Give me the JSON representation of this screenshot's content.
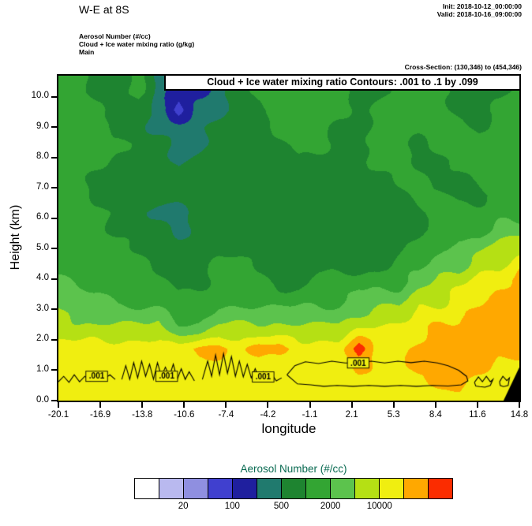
{
  "header": {
    "title": "W-E at 8S",
    "init": "Init: 2018-10-12_00:00:00",
    "valid": "Valid: 2018-10-16_09:00:00",
    "field_lines": [
      "Aerosol Number  (#/cc)",
      "Cloud + Ice water mixing ratio  (g/kg)",
      "Main"
    ],
    "cross_section": "Cross-Section: (130,346) to (454,346)"
  },
  "chart_data": {
    "type": "heatmap",
    "title": "Cloud + Ice water mixing ratio Contours: .001 to .1 by .099",
    "xlabel": "longitude",
    "ylabel": "Height (km)",
    "x_range": [
      -20.1,
      14.8
    ],
    "y_range": [
      0,
      10.7
    ],
    "x_ticks": [
      "-20.1",
      "-16.9",
      "-13.8",
      "-10.6",
      "-7.4",
      "-4.2",
      "-1.1",
      "2.1",
      "5.3",
      "8.4",
      "11.6",
      "14.8"
    ],
    "y_ticks": [
      "0.0",
      "1.0",
      "2.0",
      "3.0",
      "4.0",
      "5.0",
      "6.0",
      "7.0",
      "8.0",
      "9.0",
      "10.0"
    ],
    "palette": [
      "#ffffff",
      "#b9b9ef",
      "#8f8fe0",
      "#4040cf",
      "#1f1f9e",
      "#207a6e",
      "#1e8430",
      "#33a533",
      "#5cc34d",
      "#b5e014",
      "#f0ee10",
      "#ffa800",
      "#fb2c00"
    ],
    "legend": {
      "title": "Aerosol Number  (#/cc)",
      "title_color": "#0a6b52",
      "n_swatches": 13,
      "labels": [
        {
          "text": "20",
          "boundary": 2
        },
        {
          "text": "100",
          "boundary": 4
        },
        {
          "text": "500",
          "boundary": 6
        },
        {
          "text": "2000",
          "boundary": 8
        },
        {
          "text": "10000",
          "boundary": 10
        }
      ]
    },
    "field": {
      "cols": 24,
      "rows": 20,
      "values": [
        [
          7,
          7,
          6,
          6,
          7,
          5,
          4,
          3,
          5,
          6,
          7,
          7,
          6,
          7,
          7,
          6,
          6,
          7,
          7,
          6,
          6,
          7,
          6,
          6
        ],
        [
          7,
          7,
          6,
          6,
          7,
          5,
          4,
          4,
          5,
          6,
          7,
          7,
          7,
          7,
          7,
          6,
          6,
          7,
          7,
          7,
          6,
          6,
          6,
          7
        ],
        [
          7,
          7,
          7,
          6,
          6,
          5,
          3,
          5,
          5,
          6,
          6,
          7,
          7,
          7,
          7,
          6,
          7,
          7,
          7,
          7,
          6,
          6,
          7,
          7
        ],
        [
          7,
          7,
          7,
          6,
          6,
          5,
          5,
          5,
          6,
          6,
          6,
          7,
          7,
          7,
          6,
          6,
          7,
          7,
          7,
          7,
          7,
          6,
          7,
          7
        ],
        [
          7,
          7,
          7,
          7,
          6,
          6,
          5,
          5,
          6,
          6,
          6,
          6,
          7,
          7,
          6,
          6,
          7,
          7,
          6,
          7,
          7,
          7,
          7,
          7
        ],
        [
          7,
          7,
          7,
          6,
          6,
          6,
          5,
          6,
          6,
          6,
          6,
          6,
          6,
          6,
          6,
          6,
          7,
          7,
          6,
          6,
          7,
          7,
          7,
          7
        ],
        [
          7,
          7,
          6,
          6,
          6,
          6,
          6,
          6,
          6,
          6,
          6,
          6,
          6,
          6,
          6,
          6,
          6,
          7,
          7,
          6,
          6,
          7,
          7,
          7
        ],
        [
          7,
          7,
          6,
          6,
          6,
          6,
          6,
          6,
          6,
          6,
          6,
          6,
          6,
          6,
          6,
          6,
          6,
          6,
          7,
          7,
          6,
          6,
          7,
          7
        ],
        [
          7,
          7,
          7,
          6,
          6,
          5,
          5,
          6,
          6,
          6,
          6,
          6,
          6,
          6,
          6,
          6,
          6,
          6,
          6,
          7,
          7,
          7,
          7,
          7
        ],
        [
          7,
          7,
          7,
          6,
          6,
          6,
          5,
          6,
          6,
          6,
          6,
          6,
          6,
          6,
          6,
          6,
          6,
          6,
          6,
          7,
          7,
          7,
          8,
          8
        ],
        [
          7,
          7,
          7,
          7,
          6,
          6,
          6,
          6,
          6,
          6,
          6,
          6,
          6,
          6,
          6,
          6,
          6,
          6,
          7,
          7,
          8,
          8,
          9,
          9
        ],
        [
          7,
          7,
          7,
          7,
          7,
          6,
          6,
          6,
          7,
          7,
          6,
          6,
          6,
          6,
          6,
          6,
          6,
          7,
          7,
          8,
          8,
          9,
          9,
          10
        ],
        [
          8,
          7,
          7,
          7,
          7,
          7,
          6,
          6,
          7,
          7,
          7,
          6,
          6,
          7,
          7,
          7,
          7,
          7,
          8,
          9,
          9,
          10,
          10,
          11
        ],
        [
          8,
          8,
          8,
          7,
          7,
          7,
          7,
          7,
          7,
          7,
          7,
          7,
          7,
          7,
          7,
          8,
          8,
          8,
          9,
          9,
          10,
          10,
          11,
          11
        ],
        [
          9,
          8,
          8,
          8,
          8,
          8,
          7,
          7,
          8,
          8,
          8,
          8,
          8,
          8,
          8,
          8,
          9,
          9,
          10,
          10,
          10,
          11,
          11,
          11
        ],
        [
          9,
          9,
          9,
          9,
          9,
          9,
          8,
          8,
          9,
          9,
          9,
          9,
          9,
          9,
          9,
          10,
          10,
          10,
          10,
          11,
          11,
          11,
          11,
          11
        ],
        [
          10,
          10,
          10,
          10,
          10,
          10,
          10,
          11,
          11,
          10,
          11,
          11,
          10,
          10,
          10,
          12,
          10,
          10,
          11,
          11,
          11,
          11,
          11,
          11
        ],
        [
          10,
          10,
          10,
          10,
          10,
          10,
          10,
          10,
          10,
          10,
          10,
          10,
          10,
          10,
          10,
          11,
          10,
          10,
          11,
          11,
          11,
          11,
          10,
          10
        ],
        [
          10,
          10,
          10,
          10,
          10,
          10,
          10,
          10,
          10,
          10,
          10,
          10,
          10,
          10,
          10,
          10,
          10,
          10,
          10,
          11,
          11,
          10,
          10,
          10
        ],
        [
          10,
          10,
          10,
          10,
          10,
          10,
          10,
          10,
          10,
          10,
          10,
          10,
          10,
          10,
          10,
          10,
          10,
          10,
          10,
          10,
          10,
          10,
          10,
          10
        ]
      ]
    },
    "contour_labels": [
      {
        "text": ".001",
        "x": -17.2,
        "y": 0.8
      },
      {
        "text": ".001",
        "x": -11.9,
        "y": 0.8
      },
      {
        "text": ".001",
        "x": -4.6,
        "y": 0.78
      },
      {
        "text": ".001",
        "x": 2.6,
        "y": 1.24
      }
    ],
    "contour_lines": [
      [
        [
          -20.1,
          0.62
        ],
        [
          -19.7,
          0.8
        ],
        [
          -19.3,
          0.6
        ],
        [
          -18.9,
          0.85
        ],
        [
          -18.5,
          0.62
        ],
        [
          -18.1,
          0.8
        ],
        [
          -17.7,
          0.65
        ],
        [
          -17.2,
          0.8
        ],
        [
          -16.7,
          0.7
        ],
        [
          -16.2,
          0.85
        ],
        [
          -15.8,
          0.7
        ]
      ],
      [
        [
          -15.3,
          0.7
        ],
        [
          -15.0,
          1.15
        ],
        [
          -14.7,
          0.7
        ],
        [
          -14.4,
          1.25
        ],
        [
          -14.1,
          0.75
        ],
        [
          -13.8,
          1.3
        ],
        [
          -13.5,
          0.8
        ],
        [
          -13.2,
          1.2
        ],
        [
          -12.9,
          0.7
        ],
        [
          -12.6,
          1.25
        ],
        [
          -12.3,
          0.8
        ],
        [
          -12.0,
          1.1
        ],
        [
          -11.7,
          0.8
        ],
        [
          -11.4,
          1.2
        ],
        [
          -11.1,
          0.7
        ],
        [
          -10.8,
          1.05
        ],
        [
          -10.5,
          0.7
        ],
        [
          -10.2,
          0.95
        ],
        [
          -9.8,
          0.65
        ]
      ],
      [
        [
          -9.2,
          0.7
        ],
        [
          -8.8,
          1.3
        ],
        [
          -8.5,
          0.8
        ],
        [
          -8.2,
          1.5
        ],
        [
          -7.9,
          0.85
        ],
        [
          -7.6,
          1.55
        ],
        [
          -7.3,
          0.9
        ],
        [
          -7.0,
          1.45
        ],
        [
          -6.7,
          0.8
        ],
        [
          -6.4,
          1.3
        ],
        [
          -6.1,
          0.78
        ],
        [
          -5.8,
          1.2
        ],
        [
          -5.5,
          0.75
        ],
        [
          -5.2,
          1.05
        ],
        [
          -4.9,
          0.7
        ],
        [
          -4.6,
          0.95
        ],
        [
          -4.3,
          0.68
        ],
        [
          -4.0,
          0.9
        ],
        [
          -3.6,
          0.65
        ],
        [
          -3.2,
          0.75
        ]
      ],
      [
        [
          -2.8,
          0.85
        ],
        [
          -2.2,
          1.15
        ],
        [
          -1.4,
          1.28
        ],
        [
          -0.4,
          1.22
        ],
        [
          0.6,
          1.3
        ],
        [
          1.6,
          1.24
        ],
        [
          2.6,
          1.24
        ],
        [
          3.6,
          1.3
        ],
        [
          4.6,
          1.24
        ],
        [
          5.6,
          1.3
        ],
        [
          6.6,
          1.25
        ],
        [
          7.6,
          1.3
        ],
        [
          8.6,
          1.24
        ],
        [
          9.4,
          1.15
        ],
        [
          10.2,
          1.0
        ],
        [
          10.8,
          0.8
        ],
        [
          10.9,
          0.65
        ],
        [
          10.4,
          0.52
        ],
        [
          9.4,
          0.48
        ],
        [
          8.2,
          0.5
        ],
        [
          7.0,
          0.47
        ],
        [
          5.8,
          0.5
        ],
        [
          4.6,
          0.47
        ],
        [
          3.4,
          0.5
        ],
        [
          2.2,
          0.47
        ],
        [
          1.0,
          0.5
        ],
        [
          0.0,
          0.47
        ],
        [
          -1.0,
          0.52
        ],
        [
          -2.0,
          0.55
        ],
        [
          -2.8,
          0.85
        ]
      ],
      [
        [
          11.4,
          0.6
        ],
        [
          11.7,
          0.78
        ],
        [
          12.0,
          0.62
        ],
        [
          12.3,
          0.8
        ],
        [
          12.6,
          0.62
        ],
        [
          12.8,
          0.7
        ],
        [
          12.6,
          0.5
        ],
        [
          12.2,
          0.44
        ],
        [
          11.8,
          0.46
        ],
        [
          11.5,
          0.48
        ],
        [
          11.4,
          0.6
        ]
      ],
      [
        [
          13.3,
          0.62
        ],
        [
          13.55,
          0.8
        ],
        [
          13.85,
          0.66
        ],
        [
          14.05,
          0.75
        ],
        [
          13.95,
          0.5
        ],
        [
          13.6,
          0.46
        ],
        [
          13.35,
          0.5
        ],
        [
          13.3,
          0.62
        ]
      ]
    ],
    "terrain": [
      [
        13.6,
        0
      ],
      [
        14.8,
        0
      ],
      [
        14.8,
        1.1
      ]
    ],
    "corner_mask": [
      [
        14.05,
        10.7
      ],
      [
        14.8,
        10.7
      ],
      [
        14.8,
        10.3
      ]
    ]
  }
}
